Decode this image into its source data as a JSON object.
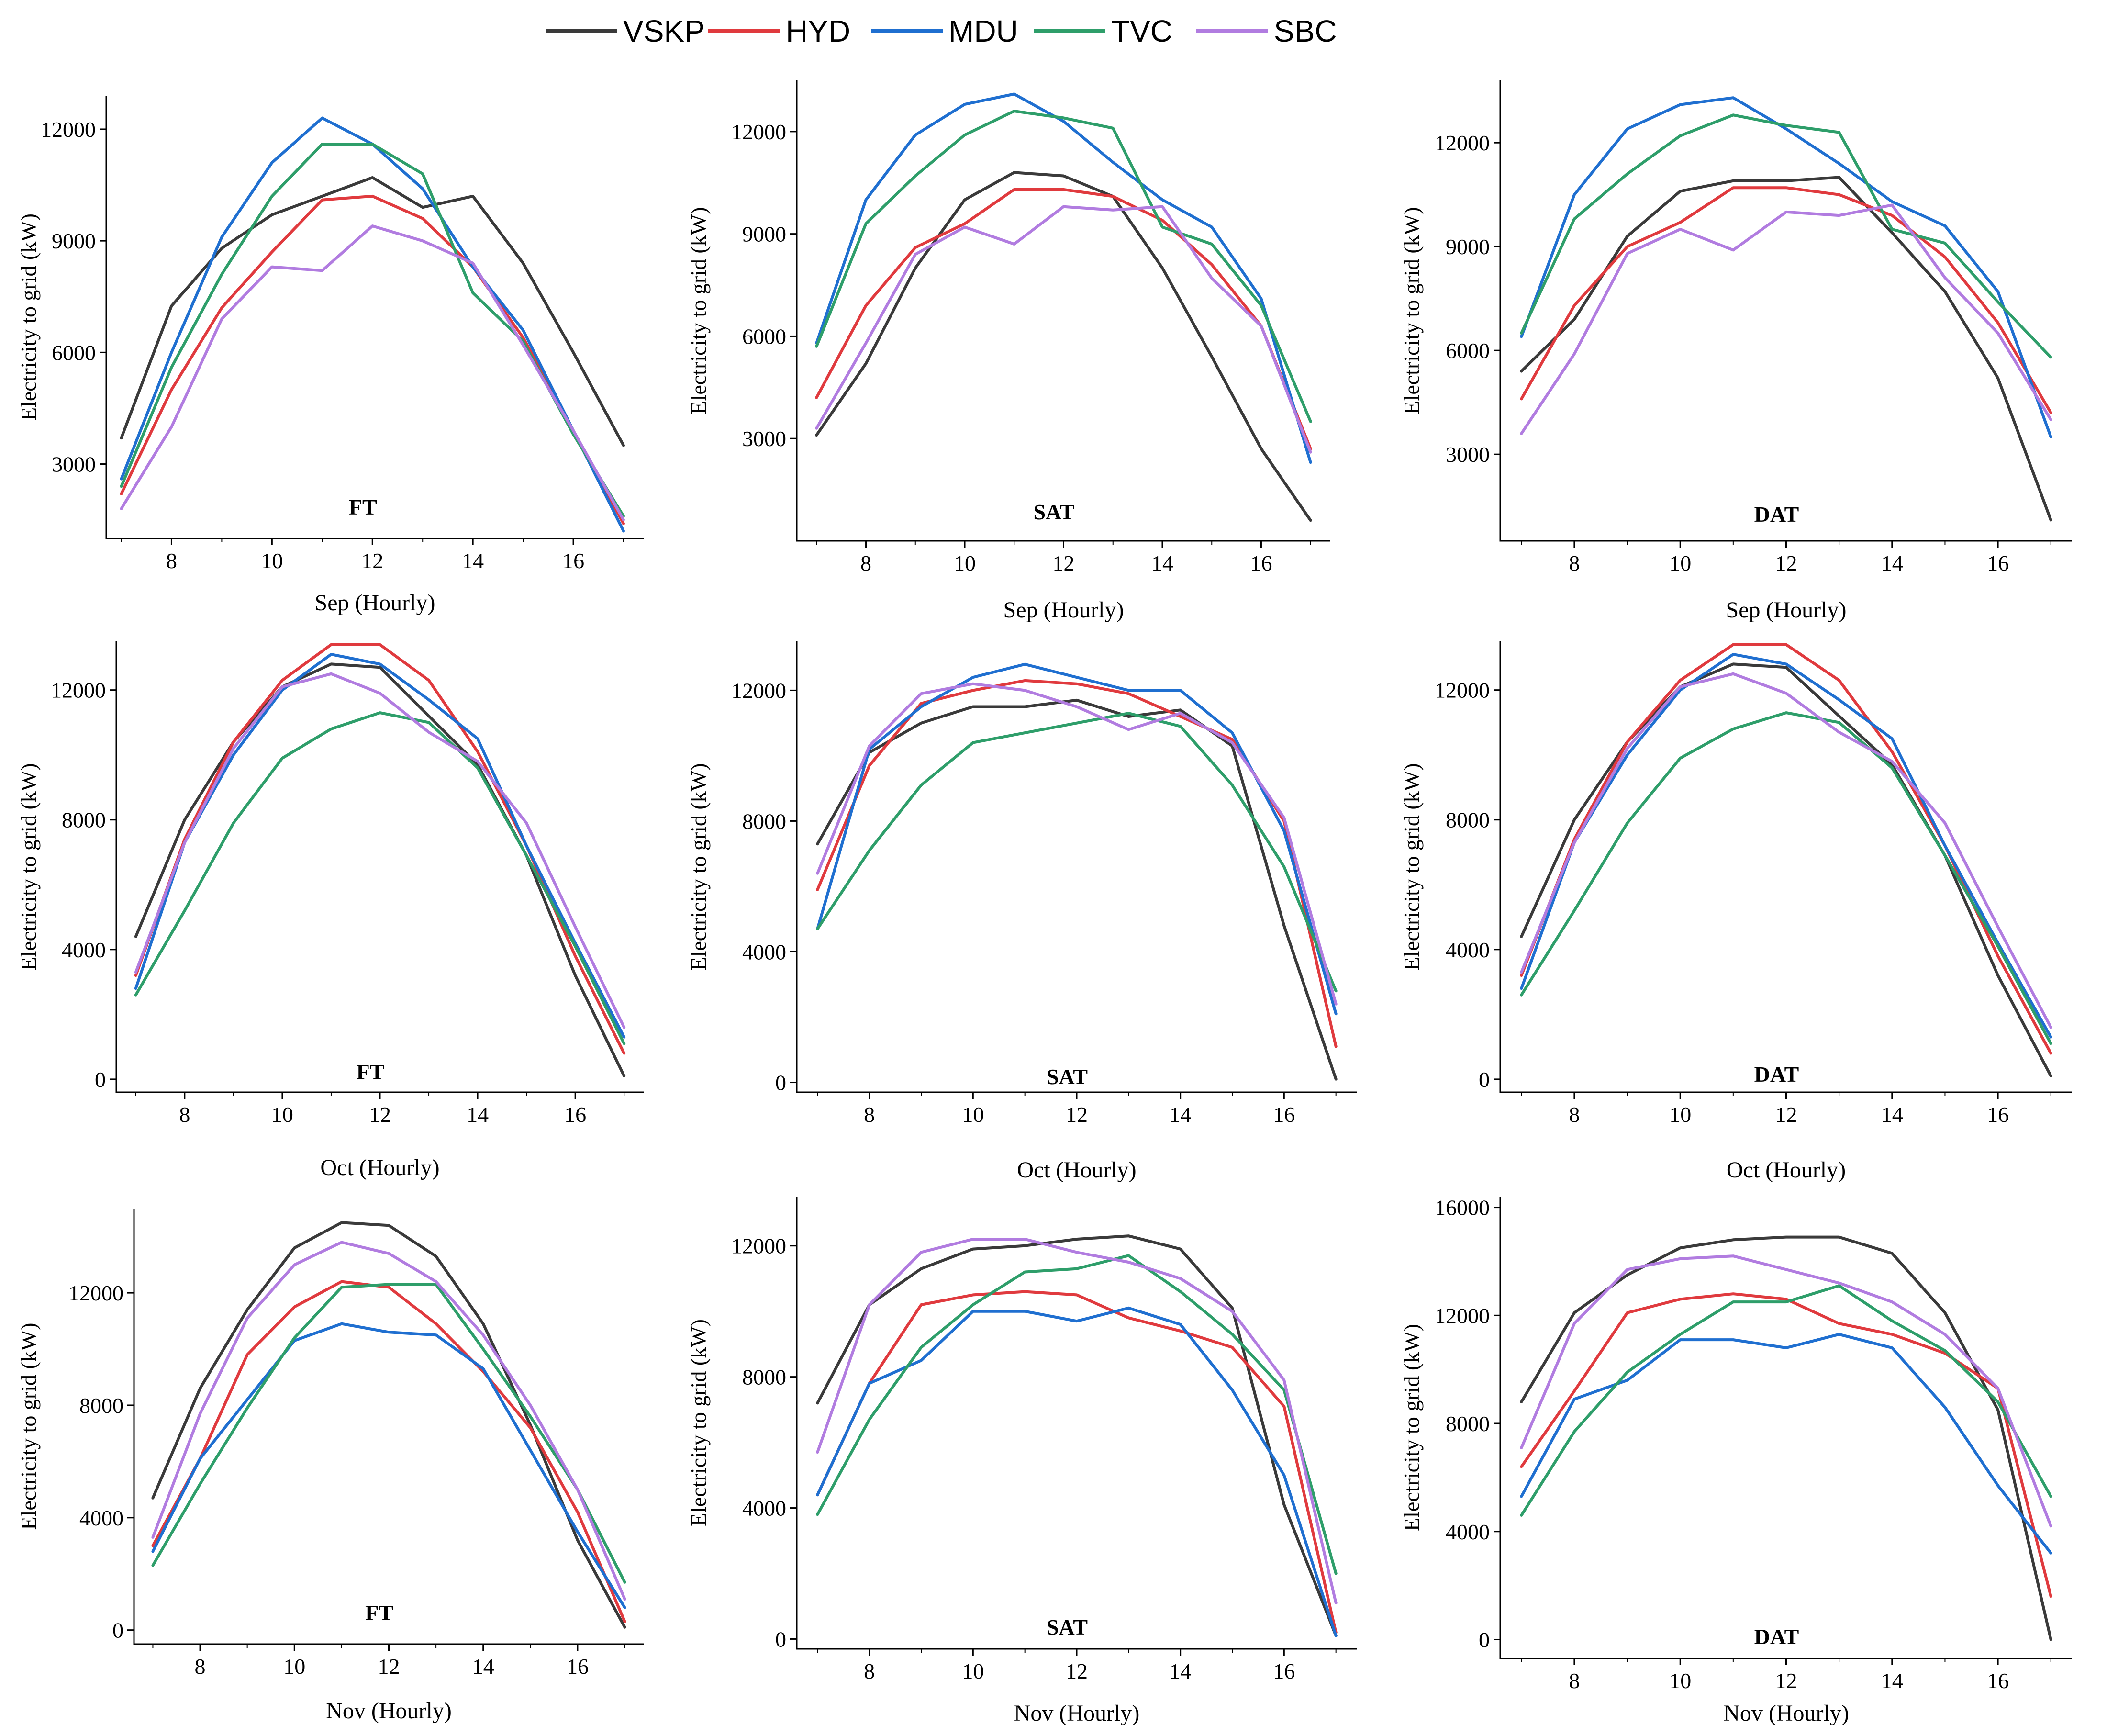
{
  "colors": {
    "VSKP": "#3a3a3a",
    "HYD": "#e03a3e",
    "MDU": "#1f6fd0",
    "TVC": "#2e9e6a",
    "SBC": "#b17ce0"
  },
  "legend": [
    "VSKP",
    "HYD",
    "MDU",
    "TVC",
    "SBC"
  ],
  "ylabel": "Electricity to grid (kW)",
  "chart_data": [
    {
      "type": "line",
      "title": "FT",
      "xlabel": "Sep (Hourly)",
      "ylabel": "Electricity to grid (kW)",
      "x": [
        7,
        8,
        9,
        10,
        11,
        12,
        13,
        14,
        15,
        16,
        17
      ],
      "xlim": [
        6.7,
        17.4
      ],
      "ylim": [
        1000,
        12900
      ],
      "xticks": [
        8,
        10,
        12,
        14,
        16
      ],
      "yticks": [
        3000,
        6000,
        9000,
        12000
      ],
      "series": [
        {
          "name": "VSKP",
          "values": [
            3700,
            7250,
            8800,
            9700,
            10200,
            10700,
            9900,
            10200,
            8400,
            6000,
            3500
          ]
        },
        {
          "name": "HYD",
          "values": [
            2200,
            5000,
            7200,
            8700,
            10100,
            10200,
            9600,
            8300,
            6400,
            3900,
            1400
          ]
        },
        {
          "name": "MDU",
          "values": [
            2600,
            6000,
            9100,
            11100,
            12300,
            11600,
            10400,
            8300,
            6600,
            3900,
            1200
          ]
        },
        {
          "name": "TVC",
          "values": [
            2400,
            5600,
            8100,
            10200,
            11600,
            11600,
            10800,
            7600,
            6300,
            3800,
            1600
          ]
        },
        {
          "name": "SBC",
          "values": [
            1800,
            4000,
            6900,
            8300,
            8200,
            9400,
            9000,
            8400,
            6200,
            3900,
            1500
          ]
        }
      ]
    },
    {
      "type": "line",
      "title": "SAT",
      "xlabel": "Sep (Hourly)",
      "ylabel": "Electricity to grid (kW)",
      "x": [
        7,
        8,
        9,
        10,
        11,
        12,
        13,
        14,
        15,
        16,
        17
      ],
      "xlim": [
        6.6,
        17.4
      ],
      "ylim": [
        0,
        13500
      ],
      "xticks": [
        8,
        10,
        12,
        14,
        16
      ],
      "yticks": [
        3000,
        6000,
        9000,
        12000
      ],
      "series": [
        {
          "name": "VSKP",
          "values": [
            3100,
            5200,
            8000,
            10000,
            10800,
            10700,
            10100,
            8000,
            5400,
            2700,
            600
          ]
        },
        {
          "name": "HYD",
          "values": [
            4200,
            6900,
            8600,
            9300,
            10300,
            10300,
            10100,
            9400,
            8100,
            6300,
            2700
          ]
        },
        {
          "name": "MDU",
          "values": [
            5800,
            10000,
            11900,
            12800,
            13100,
            12300,
            11100,
            10000,
            9200,
            7100,
            2300
          ]
        },
        {
          "name": "TVC",
          "values": [
            5700,
            9300,
            10700,
            11900,
            12600,
            12400,
            12100,
            9200,
            8700,
            6900,
            3500
          ]
        },
        {
          "name": "SBC",
          "values": [
            3300,
            5800,
            8400,
            9200,
            8700,
            9800,
            9700,
            9800,
            7700,
            6300,
            2600
          ]
        }
      ]
    },
    {
      "type": "line",
      "title": "DAT",
      "xlabel": "Sep (Hourly)",
      "ylabel": "Electricity to grid (kW)",
      "x": [
        7,
        8,
        9,
        10,
        11,
        12,
        13,
        14,
        15,
        16,
        17
      ],
      "xlim": [
        6.6,
        17.4
      ],
      "ylim": [
        500,
        13800
      ],
      "xticks": [
        8,
        10,
        12,
        14,
        16
      ],
      "yticks": [
        3000,
        6000,
        9000,
        12000
      ],
      "series": [
        {
          "name": "VSKP",
          "values": [
            5400,
            6900,
            9300,
            10600,
            10900,
            10900,
            11000,
            9400,
            7700,
            5200,
            1100
          ]
        },
        {
          "name": "HYD",
          "values": [
            4600,
            7300,
            9000,
            9700,
            10700,
            10700,
            10500,
            9900,
            8700,
            6800,
            4200
          ]
        },
        {
          "name": "MDU",
          "values": [
            6400,
            10500,
            12400,
            13100,
            13300,
            12400,
            11400,
            10300,
            9600,
            7700,
            3500
          ]
        },
        {
          "name": "TVC",
          "values": [
            6500,
            9800,
            11100,
            12200,
            12800,
            12500,
            12300,
            9500,
            9100,
            7400,
            5800
          ]
        },
        {
          "name": "SBC",
          "values": [
            3600,
            5900,
            8800,
            9500,
            8900,
            10000,
            9900,
            10200,
            8100,
            6500,
            4000
          ]
        }
      ]
    },
    {
      "type": "line",
      "title": "FT",
      "xlabel": "Oct (Hourly)",
      "ylabel": "Electricity to grid (kW)",
      "x": [
        7,
        8,
        9,
        10,
        11,
        12,
        13,
        14,
        15,
        16,
        17
      ],
      "xlim": [
        6.6,
        17.4
      ],
      "ylim": [
        -400,
        13500
      ],
      "xticks": [
        8,
        10,
        12,
        14,
        16
      ],
      "yticks": [
        0,
        4000,
        8000,
        12000
      ],
      "series": [
        {
          "name": "VSKP",
          "values": [
            4400,
            8000,
            10400,
            12100,
            12800,
            12700,
            11200,
            9700,
            6900,
            3200,
            100
          ]
        },
        {
          "name": "HYD",
          "values": [
            3200,
            7400,
            10400,
            12300,
            13400,
            13400,
            12300,
            10100,
            7200,
            3800,
            800
          ]
        },
        {
          "name": "MDU",
          "values": [
            2800,
            7300,
            10000,
            12000,
            13100,
            12800,
            11700,
            10500,
            7200,
            4200,
            1300
          ]
        },
        {
          "name": "TVC",
          "values": [
            2600,
            5200,
            7900,
            9900,
            10800,
            11300,
            11000,
            9600,
            6900,
            4100,
            1100
          ]
        },
        {
          "name": "SBC",
          "values": [
            3300,
            7300,
            10200,
            12100,
            12500,
            11900,
            10700,
            9800,
            7900,
            4700,
            1600
          ]
        }
      ]
    },
    {
      "type": "line",
      "title": "SAT",
      "xlabel": "Oct (Hourly)",
      "ylabel": "Electricity to grid (kW)",
      "x": [
        7,
        8,
        9,
        10,
        11,
        12,
        13,
        14,
        15,
        16,
        17
      ],
      "xlim": [
        6.6,
        17.4
      ],
      "ylim": [
        -300,
        13500
      ],
      "xticks": [
        8,
        10,
        12,
        14,
        16
      ],
      "yticks": [
        0,
        4000,
        8000,
        12000
      ],
      "series": [
        {
          "name": "VSKP",
          "values": [
            7300,
            10100,
            11000,
            11500,
            11500,
            11700,
            11200,
            11400,
            10300,
            4800,
            100
          ]
        },
        {
          "name": "HYD",
          "values": [
            5900,
            9700,
            11600,
            12000,
            12300,
            12200,
            11900,
            11200,
            10500,
            8000,
            1100
          ]
        },
        {
          "name": "MDU",
          "values": [
            4700,
            10200,
            11500,
            12400,
            12800,
            12400,
            12000,
            12000,
            10700,
            7700,
            2100
          ]
        },
        {
          "name": "TVC",
          "values": [
            4700,
            7100,
            9100,
            10400,
            10700,
            11000,
            11300,
            10900,
            9100,
            6600,
            2800
          ]
        },
        {
          "name": "SBC",
          "values": [
            6400,
            10300,
            11900,
            12200,
            12000,
            11500,
            10800,
            11300,
            10400,
            8100,
            2400
          ]
        }
      ]
    },
    {
      "type": "line",
      "title": "DAT",
      "xlabel": "Oct (Hourly)",
      "ylabel": "Electricity to grid (kW)",
      "x": [
        7,
        8,
        9,
        10,
        11,
        12,
        13,
        14,
        15,
        16,
        17
      ],
      "xlim": [
        6.6,
        17.4
      ],
      "ylim": [
        -400,
        13500
      ],
      "xticks": [
        8,
        10,
        12,
        14,
        16
      ],
      "yticks": [
        0,
        4000,
        8000,
        12000
      ],
      "series": [
        {
          "name": "VSKP",
          "values": [
            4400,
            8000,
            10400,
            12100,
            12800,
            12700,
            11200,
            9700,
            6900,
            3200,
            100
          ]
        },
        {
          "name": "HYD",
          "values": [
            3200,
            7400,
            10400,
            12300,
            13400,
            13400,
            12300,
            10100,
            7200,
            3800,
            800
          ]
        },
        {
          "name": "MDU",
          "values": [
            2800,
            7300,
            10000,
            12000,
            13100,
            12800,
            11700,
            10500,
            7200,
            4200,
            1300
          ]
        },
        {
          "name": "TVC",
          "values": [
            2600,
            5200,
            7900,
            9900,
            10800,
            11300,
            11000,
            9600,
            6900,
            4100,
            1100
          ]
        },
        {
          "name": "SBC",
          "values": [
            3300,
            7300,
            10200,
            12100,
            12500,
            11900,
            10700,
            9800,
            7900,
            4700,
            1600
          ]
        }
      ]
    },
    {
      "type": "line",
      "title": "FT",
      "xlabel": "Nov (Hourly)",
      "ylabel": "Electricity to grid (kW)",
      "x": [
        7,
        8,
        9,
        10,
        11,
        12,
        13,
        14,
        15,
        16,
        17
      ],
      "xlim": [
        6.6,
        17.4
      ],
      "ylim": [
        -500,
        15000
      ],
      "xticks": [
        8,
        10,
        12,
        14,
        16
      ],
      "yticks": [
        0,
        4000,
        8000,
        12000
      ],
      "series": [
        {
          "name": "VSKP",
          "values": [
            4700,
            8600,
            11400,
            13600,
            14500,
            14400,
            13300,
            10900,
            7300,
            3200,
            100
          ]
        },
        {
          "name": "HYD",
          "values": [
            3000,
            6100,
            9800,
            11500,
            12400,
            12200,
            10900,
            9200,
            7200,
            4200,
            300
          ]
        },
        {
          "name": "MDU",
          "values": [
            2800,
            6100,
            8200,
            10300,
            10900,
            10600,
            10500,
            9300,
            6400,
            3500,
            800
          ]
        },
        {
          "name": "TVC",
          "values": [
            2300,
            5200,
            7900,
            10400,
            12200,
            12300,
            12300,
            10000,
            7600,
            5000,
            1700
          ]
        },
        {
          "name": "SBC",
          "values": [
            3300,
            7700,
            11100,
            13000,
            13800,
            13400,
            12400,
            10500,
            8000,
            5000,
            1100
          ]
        }
      ]
    },
    {
      "type": "line",
      "title": "SAT",
      "xlabel": "Nov (Hourly)",
      "ylabel": "Electricity to grid (kW)",
      "x": [
        7,
        8,
        9,
        10,
        11,
        12,
        13,
        14,
        15,
        16,
        17
      ],
      "xlim": [
        6.6,
        17.4
      ],
      "ylim": [
        -300,
        13500
      ],
      "xticks": [
        8,
        10,
        12,
        14,
        16
      ],
      "yticks": [
        0,
        4000,
        8000,
        12000
      ],
      "series": [
        {
          "name": "VSKP",
          "values": [
            7200,
            10200,
            11300,
            11900,
            12000,
            12200,
            12300,
            11900,
            10100,
            4100,
            100
          ]
        },
        {
          "name": "HYD",
          "values": [
            4400,
            7800,
            10200,
            10500,
            10600,
            10500,
            9800,
            9400,
            8900,
            7100,
            200
          ]
        },
        {
          "name": "MDU",
          "values": [
            4400,
            7800,
            8500,
            10000,
            10000,
            9700,
            10100,
            9600,
            7600,
            5000,
            100
          ]
        },
        {
          "name": "TVC",
          "values": [
            3800,
            6700,
            8900,
            10200,
            11200,
            11300,
            11700,
            10600,
            9300,
            7600,
            2000
          ]
        },
        {
          "name": "SBC",
          "values": [
            5700,
            10200,
            11800,
            12200,
            12200,
            11800,
            11500,
            11000,
            10000,
            7900,
            1100
          ]
        }
      ]
    },
    {
      "type": "line",
      "title": "DAT",
      "xlabel": "Nov (Hourly)",
      "ylabel": "Electricity to grid (kW)",
      "x": [
        7,
        8,
        9,
        10,
        11,
        12,
        13,
        14,
        15,
        16,
        17
      ],
      "xlim": [
        6.6,
        17.4
      ],
      "ylim": [
        -700,
        16400
      ],
      "xticks": [
        8,
        10,
        12,
        14,
        16
      ],
      "yticks": [
        0,
        4000,
        8000,
        12000,
        16000
      ],
      "series": [
        {
          "name": "VSKP",
          "values": [
            8800,
            12100,
            13500,
            14500,
            14800,
            14900,
            14900,
            14300,
            12100,
            8500,
            0
          ]
        },
        {
          "name": "HYD",
          "values": [
            6400,
            9200,
            12100,
            12600,
            12800,
            12600,
            11700,
            11300,
            10600,
            9300,
            1600
          ]
        },
        {
          "name": "MDU",
          "values": [
            5300,
            8900,
            9600,
            11100,
            11100,
            10800,
            11300,
            10800,
            8600,
            5700,
            3200
          ]
        },
        {
          "name": "TVC",
          "values": [
            4600,
            7700,
            9900,
            11300,
            12500,
            12500,
            13100,
            11800,
            10700,
            8800,
            5300
          ]
        },
        {
          "name": "SBC",
          "values": [
            7100,
            11700,
            13700,
            14100,
            14200,
            13700,
            13200,
            12500,
            11300,
            9300,
            4200
          ]
        }
      ]
    }
  ]
}
